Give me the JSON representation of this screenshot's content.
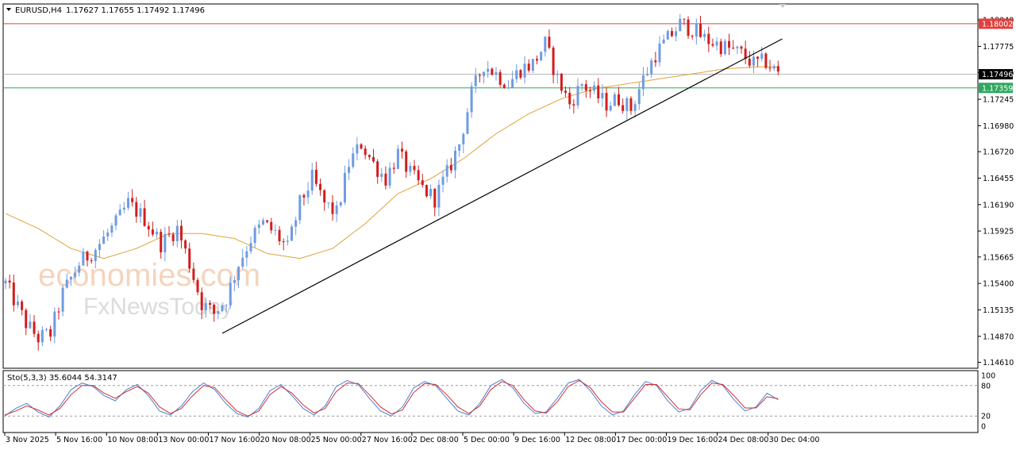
{
  "header": {
    "symbol": "EURUSD,H4",
    "ohlc": "1.17627 1.17655 1.17492 1.17496"
  },
  "indicator": {
    "label": "Sto(5,3,3) 35.6044 54.3147"
  },
  "watermark": {
    "line1": "economies.com",
    "line2": "FxNewsToday"
  },
  "colors": {
    "bull": "#6f9ce0",
    "bear": "#d21d1d",
    "ma": "#e0a33a",
    "resistance": "#e04040",
    "support": "#2fa860",
    "current": "#b8b8b8",
    "trendline": "#000000",
    "stoch_main": "#4a80d8",
    "stoch_signal": "#d03030"
  },
  "chart_data": [
    {
      "type": "line",
      "name": "EURUSD H4 price",
      "title": "EURUSD,H4",
      "price_ticks": [
        "1.18040",
        "1.17775",
        "1.17510",
        "1.17245",
        "1.16980",
        "1.16720",
        "1.16455",
        "1.16190",
        "1.15925",
        "1.15665",
        "1.15400",
        "1.15135",
        "1.14870",
        "1.14610"
      ],
      "ylim": [
        1.1455,
        1.182
      ],
      "time_labels": [
        "3 Nov 2025",
        "5 Nov 16:00",
        "10 Nov 08:00",
        "13 Nov 00:00",
        "17 Nov 16:00",
        "20 Nov 08:00",
        "25 Nov 00:00",
        "27 Nov 16:00",
        "2 Dec 08:00",
        "5 Dec 00:00",
        "9 Dec 16:00",
        "12 Dec 08:00",
        "17 Dec 00:00",
        "19 Dec 16:00",
        "24 Dec 08:00",
        "30 Dec 04:00"
      ],
      "horizontal_levels": [
        {
          "label": "1.18002",
          "value": 1.18002,
          "role": "resistance"
        },
        {
          "label": "1.17496",
          "value": 1.17496,
          "role": "current"
        },
        {
          "label": "1.17359",
          "value": 1.17359,
          "role": "support"
        }
      ],
      "close_path": [
        [
          0,
          1.154
        ],
        [
          5,
          1.15
        ],
        [
          8,
          1.1485
        ],
        [
          11,
          1.149
        ],
        [
          14,
          1.153
        ],
        [
          18,
          1.156
        ],
        [
          22,
          1.1575
        ],
        [
          27,
          1.16
        ],
        [
          30,
          1.162
        ],
        [
          34,
          1.1605
        ],
        [
          38,
          1.158
        ],
        [
          42,
          1.1595
        ],
        [
          45,
          1.156
        ],
        [
          48,
          1.152
        ],
        [
          51,
          1.151
        ],
        [
          54,
          1.1525
        ],
        [
          57,
          1.156
        ],
        [
          60,
          1.1585
        ],
        [
          63,
          1.16
        ],
        [
          66,
          1.159
        ],
        [
          69,
          1.1575
        ],
        [
          72,
          1.162
        ],
        [
          75,
          1.1645
        ],
        [
          78,
          1.162
        ],
        [
          81,
          1.161
        ],
        [
          84,
          1.166
        ],
        [
          87,
          1.168
        ],
        [
          90,
          1.166
        ],
        [
          93,
          1.1645
        ],
        [
          96,
          1.167
        ],
        [
          99,
          1.165
        ],
        [
          102,
          1.1635
        ],
        [
          105,
          1.1625
        ],
        [
          108,
          1.165
        ],
        [
          111,
          1.168
        ],
        [
          114,
          1.173
        ],
        [
          117,
          1.176
        ],
        [
          120,
          1.175
        ],
        [
          123,
          1.174
        ],
        [
          126,
          1.1755
        ],
        [
          129,
          1.176
        ],
        [
          132,
          1.178
        ],
        [
          135,
          1.1745
        ],
        [
          138,
          1.172
        ],
        [
          141,
          1.174
        ],
        [
          144,
          1.173
        ],
        [
          147,
          1.172
        ],
        [
          150,
          1.1725
        ],
        [
          153,
          1.1715
        ],
        [
          156,
          1.1745
        ],
        [
          159,
          1.177
        ],
        [
          162,
          1.1785
        ],
        [
          165,
          1.18
        ],
        [
          168,
          1.1795
        ],
        [
          171,
          1.1785
        ],
        [
          174,
          1.178
        ],
        [
          177,
          1.1775
        ],
        [
          180,
          1.177
        ],
        [
          183,
          1.176
        ],
        [
          186,
          1.1762
        ],
        [
          189,
          1.175
        ]
      ],
      "ma_path": [
        [
          0,
          1.161
        ],
        [
          8,
          1.1595
        ],
        [
          16,
          1.1575
        ],
        [
          24,
          1.1565
        ],
        [
          32,
          1.1575
        ],
        [
          40,
          1.159
        ],
        [
          48,
          1.159
        ],
        [
          56,
          1.1585
        ],
        [
          64,
          1.157
        ],
        [
          72,
          1.1565
        ],
        [
          80,
          1.1575
        ],
        [
          88,
          1.16
        ],
        [
          96,
          1.163
        ],
        [
          104,
          1.1645
        ],
        [
          112,
          1.1665
        ],
        [
          120,
          1.169
        ],
        [
          128,
          1.171
        ],
        [
          136,
          1.1725
        ],
        [
          144,
          1.1735
        ],
        [
          152,
          1.174
        ],
        [
          160,
          1.1745
        ],
        [
          168,
          1.175
        ],
        [
          176,
          1.1755
        ],
        [
          184,
          1.1757
        ],
        [
          189,
          1.1757
        ]
      ],
      "trendline": [
        [
          1.149,
          53
        ],
        [
          1.1785,
          190
        ]
      ]
    },
    {
      "type": "line",
      "name": "Sto(5,3,3)",
      "ylim": [
        0,
        100
      ],
      "level_labels": [
        "100",
        "80",
        "20",
        "0"
      ],
      "series": [
        {
          "name": "main",
          "values": [
            20,
            35,
            45,
            28,
            18,
            40,
            72,
            85,
            78,
            60,
            50,
            72,
            82,
            60,
            30,
            22,
            40,
            68,
            85,
            72,
            45,
            25,
            18,
            35,
            70,
            82,
            60,
            35,
            22,
            40,
            78,
            90,
            82,
            55,
            30,
            20,
            38,
            75,
            88,
            80,
            55,
            30,
            22,
            45,
            80,
            92,
            75,
            45,
            25,
            28,
            55,
            85,
            92,
            70,
            40,
            22,
            30,
            62,
            88,
            80,
            50,
            28,
            35,
            70,
            90,
            80,
            52,
            30,
            38,
            65,
            52
          ]
        },
        {
          "name": "signal",
          "values": [
            22,
            30,
            40,
            32,
            22,
            35,
            62,
            80,
            80,
            65,
            55,
            68,
            78,
            65,
            38,
            25,
            35,
            60,
            80,
            76,
            52,
            30,
            20,
            30,
            62,
            78,
            65,
            42,
            26,
            35,
            68,
            85,
            84,
            62,
            38,
            24,
            32,
            66,
            84,
            82,
            62,
            38,
            25,
            40,
            72,
            88,
            80,
            52,
            30,
            26,
            48,
            78,
            90,
            76,
            48,
            28,
            28,
            55,
            82,
            82,
            58,
            34,
            32,
            62,
            85,
            82,
            60,
            36,
            36,
            58,
            54
          ]
        }
      ]
    }
  ]
}
